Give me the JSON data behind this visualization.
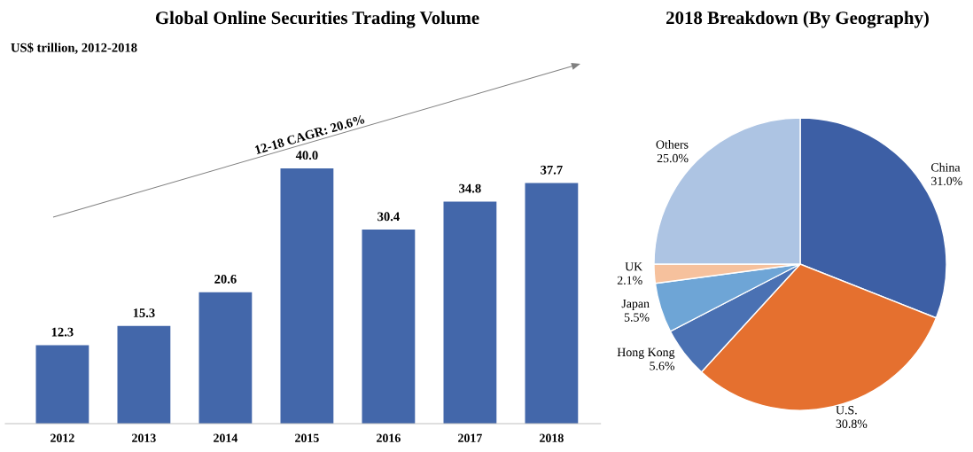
{
  "chart_data": [
    {
      "type": "bar",
      "title": "Global Online Securities Trading Volume",
      "subtitle": "US$ trillion, 2012-2018",
      "categories": [
        "2012",
        "2013",
        "2014",
        "2015",
        "2016",
        "2017",
        "2018"
      ],
      "values": [
        12.3,
        15.3,
        20.6,
        40.0,
        30.4,
        34.8,
        37.7
      ],
      "value_labels": [
        "12.3",
        "15.3",
        "20.6",
        "40.0",
        "30.4",
        "34.8",
        "37.7"
      ],
      "color": "#4367aa",
      "tick_labels": "x",
      "grid": false,
      "annotations": [
        "12-18 CAGR: 20.6%"
      ]
    },
    {
      "type": "pie",
      "title": "2018 Breakdown (By Geography)",
      "categories": [
        "China",
        "U.S.",
        "Hong Kong",
        "Japan",
        "UK",
        "Others"
      ],
      "values": [
        31.0,
        30.8,
        5.6,
        5.5,
        2.1,
        25.0
      ],
      "value_labels": [
        "31.0%",
        "30.8%",
        "5.6%",
        "5.5%",
        "2.1%",
        "25.0%"
      ],
      "colors": [
        "#3d5fa5",
        "#e5702f",
        "#4a71b3",
        "#6ea5d6",
        "#f6c19d",
        "#adc4e3"
      ]
    }
  ]
}
